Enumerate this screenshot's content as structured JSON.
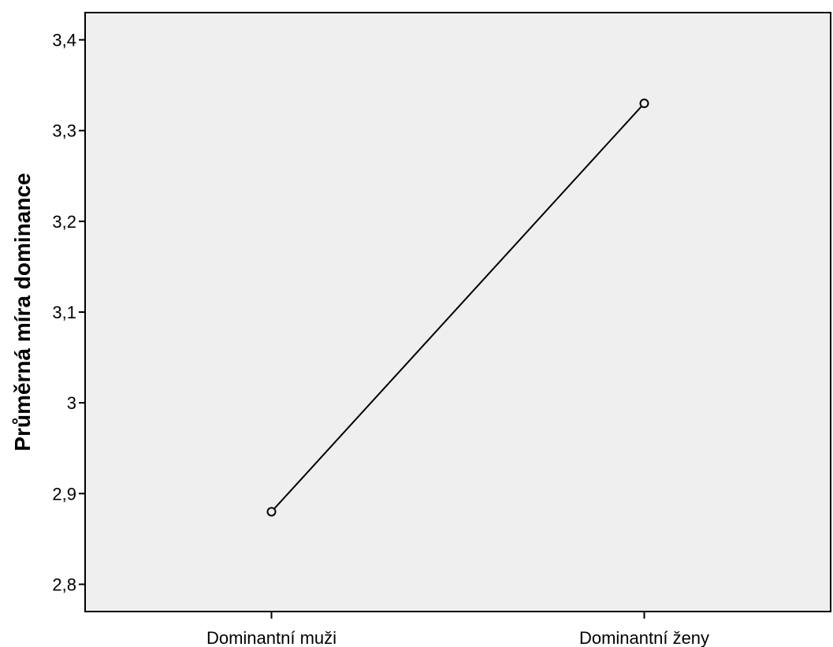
{
  "chart_data": {
    "type": "line",
    "title": "",
    "xlabel": "",
    "ylabel": "Průměrná míra dominance",
    "categories": [
      "Dominantní muži",
      "Dominantní ženy"
    ],
    "series": [
      {
        "values": [
          2.88,
          3.33
        ]
      }
    ],
    "ylim": [
      2.77,
      3.43
    ],
    "y_ticks": [
      "2,8",
      "2,9",
      "3",
      "3,1",
      "3,2",
      "3,3",
      "3,4"
    ],
    "y_tick_values": [
      2.8,
      2.9,
      3.0,
      3.1,
      3.2,
      3.3,
      3.4
    ],
    "grid": false,
    "legend": "none",
    "marker": "open-circle",
    "colors": {
      "plot_background": "#efefef",
      "line": "#000000",
      "marker_fill": "#efefef"
    }
  }
}
